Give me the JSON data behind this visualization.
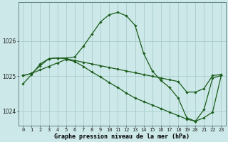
{
  "title": "Graphe pression niveau de la mer (hPa)",
  "background_color": "#cce8e8",
  "grid_color": "#aacccc",
  "line_color": "#1a5c1a",
  "x_labels": [
    "0",
    "1",
    "2",
    "3",
    "4",
    "5",
    "6",
    "7",
    "8",
    "9",
    "10",
    "11",
    "12",
    "13",
    "14",
    "15",
    "16",
    "17",
    "18",
    "19",
    "20",
    "21",
    "22",
    "23"
  ],
  "hours": [
    0,
    1,
    2,
    3,
    4,
    5,
    6,
    7,
    8,
    9,
    10,
    11,
    12,
    13,
    14,
    15,
    16,
    17,
    18,
    19,
    20,
    21,
    22,
    23
  ],
  "series1": [
    1024.78,
    1025.05,
    1025.35,
    1025.5,
    1025.52,
    1025.52,
    1025.55,
    1025.85,
    1026.2,
    1026.55,
    1026.75,
    1026.82,
    1026.72,
    1026.45,
    1025.65,
    1025.15,
    1024.88,
    1024.68,
    1024.38,
    1023.82,
    1023.72,
    1024.05,
    1024.95,
    1025.02
  ],
  "series2": [
    1025.02,
    1025.08,
    1025.3,
    1025.5,
    1025.52,
    1025.5,
    1025.45,
    1025.4,
    1025.35,
    1025.3,
    1025.25,
    1025.2,
    1025.15,
    1025.1,
    1025.05,
    1025.0,
    1024.95,
    1024.9,
    1024.85,
    1024.55,
    1024.55,
    1024.65,
    1025.02,
    1025.05
  ],
  "series3": [
    1025.02,
    1025.08,
    1025.18,
    1025.28,
    1025.38,
    1025.48,
    1025.42,
    1025.28,
    1025.12,
    1024.98,
    1024.82,
    1024.68,
    1024.52,
    1024.38,
    1024.28,
    1024.18,
    1024.08,
    1023.98,
    1023.88,
    1023.78,
    1023.72,
    1023.82,
    1023.98,
    1025.02
  ],
  "ylim_min": 1023.6,
  "ylim_max": 1027.1,
  "yticks": [
    1024,
    1025,
    1026
  ],
  "marker": "D",
  "marker_size": 1.8,
  "line_width": 0.9,
  "xlabel_fontsize": 6.0,
  "tick_fontsize": 5.0
}
